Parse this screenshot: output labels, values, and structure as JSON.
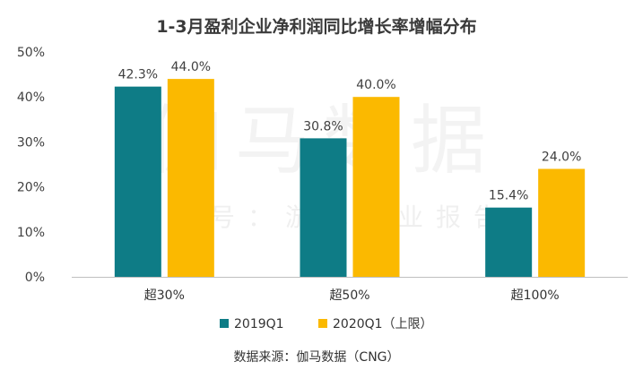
{
  "chart_data": {
    "type": "bar",
    "title": "1-3月盈利企业净利润同比增长率增幅分布",
    "categories": [
      "超30%",
      "超50%",
      "超100%"
    ],
    "series": [
      {
        "name": "2019Q1",
        "color": "#0e7c86",
        "values": [
          42.3,
          30.8,
          15.4
        ],
        "labels": [
          "42.3%",
          "30.8%",
          "15.4%"
        ]
      },
      {
        "name": "2020Q1（上限）",
        "color": "#fbb900",
        "values": [
          44.0,
          40.0,
          24.0
        ],
        "labels": [
          "44.0%",
          "40.0%",
          "24.0%"
        ]
      }
    ],
    "ylim": [
      0,
      50
    ],
    "yticks": [
      "0%",
      "10%",
      "20%",
      "30%",
      "40%",
      "50%"
    ],
    "ytick_values": [
      0,
      10,
      20,
      30,
      40,
      50
    ],
    "legend_position": "bottom",
    "grid": false
  },
  "watermark": {
    "line1": "伽马数据",
    "line2": "微信号：游戏产业报告"
  },
  "source": "数据来源：伽马数据（CNG）"
}
